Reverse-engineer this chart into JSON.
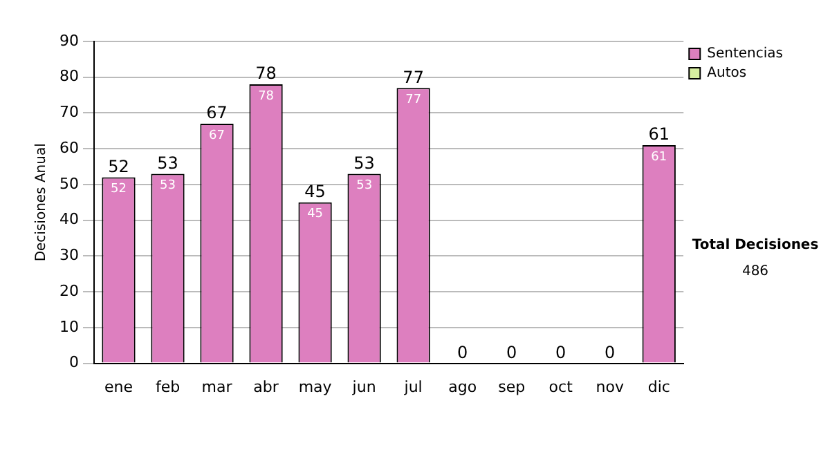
{
  "chart_data": {
    "type": "bar",
    "stacked": true,
    "ylabel": "Decisiones Anual",
    "categories": [
      "ene",
      "feb",
      "mar",
      "abr",
      "may",
      "jun",
      "jul",
      "ago",
      "sep",
      "oct",
      "nov",
      "dic"
    ],
    "series": [
      {
        "name": "Sentencias",
        "color": "#dd7fbf",
        "values": [
          52,
          53,
          67,
          78,
          45,
          53,
          77,
          0,
          0,
          0,
          0,
          61
        ],
        "value_labels": [
          "52",
          "53",
          "67",
          "78",
          "45",
          "53",
          "77",
          null,
          null,
          null,
          null,
          "61"
        ]
      },
      {
        "name": "Autos",
        "color": "#d6eea0",
        "values": [
          0,
          0,
          0,
          0,
          0,
          0,
          0,
          0,
          0,
          0,
          0,
          0
        ],
        "value_labels": [
          null,
          null,
          null,
          null,
          null,
          null,
          null,
          null,
          null,
          null,
          null,
          null
        ]
      }
    ],
    "totals": [
      "52",
      "53",
      "67",
      "78",
      "45",
      "53",
      "77",
      "0",
      "0",
      "0",
      "0",
      "61"
    ],
    "ylim": [
      0,
      90
    ],
    "yticks": [
      0,
      10,
      20,
      30,
      40,
      50,
      60,
      70,
      80,
      90
    ],
    "grid": "y",
    "legend": "right",
    "annotations": [
      "Total Decisiones",
      "486"
    ]
  }
}
